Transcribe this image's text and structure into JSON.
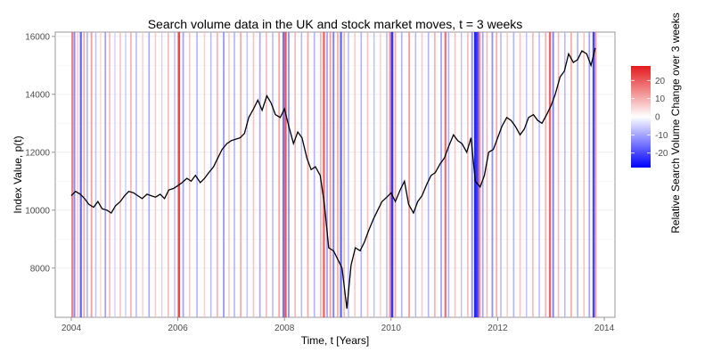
{
  "chart_data": {
    "type": "line",
    "title": "Search volume data in the UK and stock market moves, t = 3 weeks",
    "xlabel": "Time, t [Years]",
    "ylabel": "Index Value, p(t)",
    "xlim": [
      2003.7,
      2014.2
    ],
    "ylim": [
      6300,
      16150
    ],
    "x_ticks": [
      2004,
      2006,
      2008,
      2010,
      2012,
      2014
    ],
    "x_tick_labels": [
      "2004",
      "2006",
      "2008",
      "2010",
      "2012",
      "2014"
    ],
    "y_ticks": [
      8000,
      10000,
      12000,
      14000,
      16000
    ],
    "y_tick_labels": [
      "8000",
      "10000",
      "12000",
      "14000",
      "16000"
    ],
    "grid": true,
    "series": [
      {
        "color": "#000000",
        "points": [
          [
            2004.0,
            10500
          ],
          [
            2004.08,
            10650
          ],
          [
            2004.17,
            10550
          ],
          [
            2004.25,
            10400
          ],
          [
            2004.33,
            10200
          ],
          [
            2004.42,
            10100
          ],
          [
            2004.5,
            10300
          ],
          [
            2004.58,
            10050
          ],
          [
            2004.67,
            10000
          ],
          [
            2004.75,
            9900
          ],
          [
            2004.83,
            10150
          ],
          [
            2004.92,
            10300
          ],
          [
            2005.0,
            10500
          ],
          [
            2005.08,
            10650
          ],
          [
            2005.17,
            10600
          ],
          [
            2005.25,
            10500
          ],
          [
            2005.33,
            10400
          ],
          [
            2005.42,
            10550
          ],
          [
            2005.5,
            10500
          ],
          [
            2005.58,
            10450
          ],
          [
            2005.67,
            10550
          ],
          [
            2005.75,
            10400
          ],
          [
            2005.83,
            10700
          ],
          [
            2005.92,
            10750
          ],
          [
            2006.0,
            10850
          ],
          [
            2006.08,
            10950
          ],
          [
            2006.17,
            11100
          ],
          [
            2006.25,
            11000
          ],
          [
            2006.33,
            11200
          ],
          [
            2006.42,
            10950
          ],
          [
            2006.5,
            11100
          ],
          [
            2006.58,
            11300
          ],
          [
            2006.67,
            11500
          ],
          [
            2006.75,
            11800
          ],
          [
            2006.83,
            12100
          ],
          [
            2006.92,
            12300
          ],
          [
            2007.0,
            12400
          ],
          [
            2007.08,
            12450
          ],
          [
            2007.17,
            12500
          ],
          [
            2007.25,
            12650
          ],
          [
            2007.33,
            13200
          ],
          [
            2007.42,
            13500
          ],
          [
            2007.5,
            13800
          ],
          [
            2007.58,
            13450
          ],
          [
            2007.67,
            13950
          ],
          [
            2007.75,
            13700
          ],
          [
            2007.83,
            13300
          ],
          [
            2007.92,
            13200
          ],
          [
            2008.0,
            13500
          ],
          [
            2008.08,
            12900
          ],
          [
            2008.17,
            12300
          ],
          [
            2008.25,
            12700
          ],
          [
            2008.33,
            12500
          ],
          [
            2008.42,
            11800
          ],
          [
            2008.5,
            11400
          ],
          [
            2008.58,
            11500
          ],
          [
            2008.67,
            11200
          ],
          [
            2008.75,
            10200
          ],
          [
            2008.83,
            8700
          ],
          [
            2008.92,
            8600
          ],
          [
            2009.0,
            8300
          ],
          [
            2009.08,
            8000
          ],
          [
            2009.17,
            6600
          ],
          [
            2009.25,
            8100
          ],
          [
            2009.33,
            8700
          ],
          [
            2009.42,
            8600
          ],
          [
            2009.5,
            8900
          ],
          [
            2009.58,
            9300
          ],
          [
            2009.67,
            9700
          ],
          [
            2009.75,
            10000
          ],
          [
            2009.83,
            10300
          ],
          [
            2009.92,
            10450
          ],
          [
            2010.0,
            10600
          ],
          [
            2010.08,
            10300
          ],
          [
            2010.17,
            10700
          ],
          [
            2010.25,
            11000
          ],
          [
            2010.33,
            10200
          ],
          [
            2010.42,
            9900
          ],
          [
            2010.5,
            10300
          ],
          [
            2010.58,
            10500
          ],
          [
            2010.67,
            10900
          ],
          [
            2010.75,
            11200
          ],
          [
            2010.83,
            11300
          ],
          [
            2010.92,
            11600
          ],
          [
            2011.0,
            11800
          ],
          [
            2011.08,
            12200
          ],
          [
            2011.17,
            12600
          ],
          [
            2011.25,
            12400
          ],
          [
            2011.33,
            12300
          ],
          [
            2011.42,
            12000
          ],
          [
            2011.5,
            12500
          ],
          [
            2011.58,
            11000
          ],
          [
            2011.67,
            10800
          ],
          [
            2011.75,
            11200
          ],
          [
            2011.83,
            12000
          ],
          [
            2011.92,
            12100
          ],
          [
            2012.0,
            12500
          ],
          [
            2012.08,
            12900
          ],
          [
            2012.17,
            13200
          ],
          [
            2012.25,
            13100
          ],
          [
            2012.33,
            12900
          ],
          [
            2012.42,
            12600
          ],
          [
            2012.5,
            12800
          ],
          [
            2012.58,
            13200
          ],
          [
            2012.67,
            13300
          ],
          [
            2012.75,
            13100
          ],
          [
            2012.83,
            13000
          ],
          [
            2012.92,
            13300
          ],
          [
            2013.0,
            13600
          ],
          [
            2013.08,
            14000
          ],
          [
            2013.17,
            14600
          ],
          [
            2013.25,
            14800
          ],
          [
            2013.33,
            15400
          ],
          [
            2013.42,
            15100
          ],
          [
            2013.5,
            15200
          ],
          [
            2013.58,
            15500
          ],
          [
            2013.67,
            15400
          ],
          [
            2013.75,
            15000
          ],
          [
            2013.83,
            15600
          ]
        ]
      }
    ],
    "background_bands": {
      "scale_label": "Relative Search Volume Change over 3 weeks",
      "scale_range": [
        -28,
        28
      ],
      "scale_ticks": [
        20,
        10,
        0,
        -10,
        -20
      ],
      "scale_tick_labels": [
        "20",
        "10",
        "0",
        "-10",
        "-20"
      ],
      "low_color": "#0000ff",
      "mid_color": "#ffffff",
      "high_color": "#e31a1c",
      "values": [
        [
          2004.02,
          18
        ],
        [
          2004.06,
          -15
        ],
        [
          2004.12,
          8
        ],
        [
          2004.18,
          -20
        ],
        [
          2004.24,
          12
        ],
        [
          2004.3,
          -10
        ],
        [
          2004.38,
          14
        ],
        [
          2004.46,
          -8
        ],
        [
          2004.55,
          6
        ],
        [
          2004.64,
          -12
        ],
        [
          2004.72,
          10
        ],
        [
          2004.82,
          -6
        ],
        [
          2004.92,
          9
        ],
        [
          2005.02,
          -7
        ],
        [
          2005.12,
          11
        ],
        [
          2005.22,
          -9
        ],
        [
          2005.34,
          7
        ],
        [
          2005.46,
          -11
        ],
        [
          2005.58,
          8
        ],
        [
          2005.7,
          -6
        ],
        [
          2005.82,
          10
        ],
        [
          2005.94,
          -8
        ],
        [
          2006.02,
          26
        ],
        [
          2006.1,
          -12
        ],
        [
          2006.22,
          9
        ],
        [
          2006.36,
          -10
        ],
        [
          2006.5,
          7
        ],
        [
          2006.62,
          -9
        ],
        [
          2006.74,
          11
        ],
        [
          2006.86,
          -13
        ],
        [
          2006.96,
          8
        ],
        [
          2007.06,
          -10
        ],
        [
          2007.18,
          12
        ],
        [
          2007.3,
          -8
        ],
        [
          2007.42,
          9
        ],
        [
          2007.54,
          -11
        ],
        [
          2007.66,
          10
        ],
        [
          2007.78,
          -9
        ],
        [
          2007.9,
          13
        ],
        [
          2007.98,
          -18
        ],
        [
          2008.02,
          24
        ],
        [
          2008.08,
          -14
        ],
        [
          2008.2,
          10
        ],
        [
          2008.32,
          -9
        ],
        [
          2008.44,
          12
        ],
        [
          2008.56,
          -10
        ],
        [
          2008.68,
          11
        ],
        [
          2008.74,
          22
        ],
        [
          2008.8,
          -12
        ],
        [
          2008.86,
          14
        ],
        [
          2008.92,
          -16
        ],
        [
          2009.0,
          12
        ],
        [
          2009.06,
          -20
        ],
        [
          2009.12,
          10
        ],
        [
          2009.2,
          -9
        ],
        [
          2009.32,
          8
        ],
        [
          2009.44,
          -10
        ],
        [
          2009.56,
          9
        ],
        [
          2009.68,
          -8
        ],
        [
          2009.8,
          7
        ],
        [
          2009.92,
          -9
        ],
        [
          2009.98,
          16
        ],
        [
          2010.02,
          -26
        ],
        [
          2010.08,
          12
        ],
        [
          2010.2,
          -10
        ],
        [
          2010.34,
          14
        ],
        [
          2010.46,
          -9
        ],
        [
          2010.58,
          8
        ],
        [
          2010.7,
          -10
        ],
        [
          2010.82,
          11
        ],
        [
          2010.94,
          -12
        ],
        [
          2011.02,
          20
        ],
        [
          2011.08,
          -10
        ],
        [
          2011.2,
          9
        ],
        [
          2011.32,
          -8
        ],
        [
          2011.44,
          10
        ],
        [
          2011.52,
          -14
        ],
        [
          2011.58,
          -28
        ],
        [
          2011.62,
          -24
        ],
        [
          2011.66,
          18
        ],
        [
          2011.72,
          -12
        ],
        [
          2011.8,
          10
        ],
        [
          2011.9,
          -14
        ],
        [
          2011.98,
          12
        ],
        [
          2012.06,
          -9
        ],
        [
          2012.18,
          8
        ],
        [
          2012.3,
          -10
        ],
        [
          2012.42,
          9
        ],
        [
          2012.54,
          -8
        ],
        [
          2012.66,
          10
        ],
        [
          2012.78,
          -9
        ],
        [
          2012.9,
          11
        ],
        [
          2012.98,
          22
        ],
        [
          2013.04,
          -16
        ],
        [
          2013.14,
          10
        ],
        [
          2013.26,
          -9
        ],
        [
          2013.38,
          12
        ],
        [
          2013.5,
          -10
        ],
        [
          2013.62,
          9
        ],
        [
          2013.72,
          -12
        ],
        [
          2013.8,
          -24
        ],
        [
          2013.84,
          14
        ]
      ]
    }
  }
}
